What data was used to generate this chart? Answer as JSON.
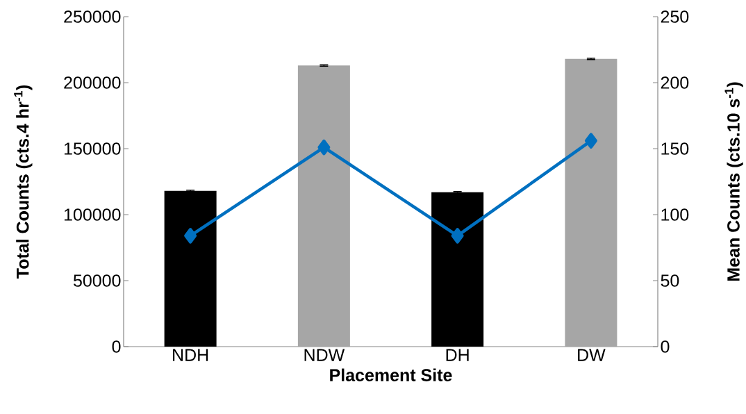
{
  "chart_data": {
    "type": "bar",
    "categories": [
      "NDH",
      "NDW",
      "DH",
      "DW"
    ],
    "xlabel": "Placement Site",
    "ylabel": "Total Counts (cts.4 hr$^{-1}$)",
    "y2label": "Mean Counts (cts.10 s$^{-1}$)",
    "ylim": [
      0,
      250000
    ],
    "yticks": [
      0,
      50000,
      100000,
      150000,
      200000,
      250000
    ],
    "y2lim": [
      0,
      250
    ],
    "y2ticks": [
      0,
      50,
      100,
      150,
      200,
      250
    ],
    "series": [
      {
        "type": "bar",
        "colors": [
          "#000000",
          "#a6a6a6",
          "#000000",
          "#a6a6a6"
        ],
        "values": [
          118000,
          213000,
          117000,
          218000
        ],
        "errors": [
          500,
          500,
          500,
          500
        ]
      },
      {
        "type": "line",
        "axis": "y2",
        "color": "#0070c0",
        "marker": "diamond",
        "values": [
          84,
          151,
          84,
          156
        ]
      }
    ]
  }
}
